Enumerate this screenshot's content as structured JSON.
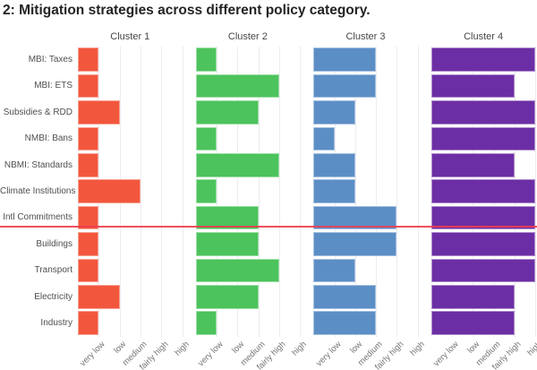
{
  "title": "2: Mitigation strategies across different policy category.",
  "chart_data": {
    "type": "bar",
    "orientation": "horizontal",
    "title": "2: Mitigation strategies across different policy category.",
    "categories": [
      "MBI: Taxes",
      "MBI: ETS",
      "Subsidies & RDD",
      "NMBI: Bans",
      "NBMI: Standards",
      "Climate Institutions",
      "Intl Commitments",
      "Buildings",
      "Transport",
      "Electricity",
      "Industry"
    ],
    "x_tick_labels": [
      "very low",
      "low",
      "medium",
      "fairly high",
      "high"
    ],
    "x_tick_values": [
      1,
      2,
      3,
      4,
      5
    ],
    "xlim": [
      0,
      5
    ],
    "grid": "vertical-light",
    "legend_position": "none",
    "panels": [
      {
        "label": "Cluster 1",
        "color": "#f2573d",
        "values": [
          1,
          1,
          2,
          1,
          1,
          3,
          1,
          1,
          1,
          2,
          1
        ]
      },
      {
        "label": "Cluster 2",
        "color": "#4cc35c",
        "values": [
          1,
          4,
          3,
          1,
          4,
          1,
          3,
          3,
          4,
          3,
          1
        ]
      },
      {
        "label": "Cluster 3",
        "color": "#5c8ec6",
        "values": [
          3,
          3,
          2,
          1,
          2,
          2,
          4,
          4,
          2,
          3,
          3
        ]
      },
      {
        "label": "Cluster 4",
        "color": "#6c2ea4",
        "values": [
          5,
          4,
          5,
          5,
          4,
          5,
          5,
          5,
          5,
          4,
          4
        ]
      }
    ],
    "reference_line": {
      "orientation": "horizontal",
      "position": "between Intl Commitments and Buildings",
      "color": "#f03c4e"
    }
  },
  "style_colors": {
    "background": "#ffffff",
    "title_text": "#242424",
    "header_text": "#474747",
    "category_text": "#4f4f4f",
    "tick_text": "#757575",
    "gridline": "#ececf2"
  }
}
